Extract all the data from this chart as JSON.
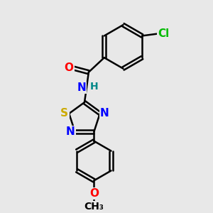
{
  "background_color": "#e8e8e8",
  "bond_color": "#000000",
  "atom_colors": {
    "O": "#ff0000",
    "N": "#0000ff",
    "S": "#ccaa00",
    "Cl": "#00bb00",
    "C": "#000000",
    "H": "#008888"
  },
  "bond_width": 1.8,
  "font_size": 11,
  "figsize": [
    3.0,
    3.0
  ],
  "dpi": 100
}
